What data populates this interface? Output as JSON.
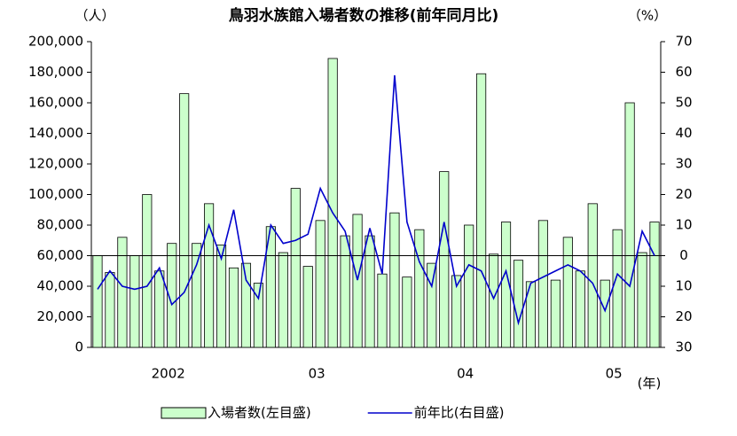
{
  "chart_data": {
    "type": "bar",
    "title": "鳥羽水族館入場者数の推移(前年同月比)",
    "y_label": "（人）",
    "y2_label": "（%）",
    "x_label": "(年)",
    "categories": [
      null,
      null,
      null,
      null,
      null,
      null,
      "2002",
      null,
      null,
      null,
      null,
      null,
      null,
      null,
      null,
      null,
      null,
      null,
      "03",
      null,
      null,
      null,
      null,
      null,
      null,
      null,
      null,
      null,
      null,
      null,
      "04",
      null,
      null,
      null,
      null,
      null,
      null,
      null,
      null,
      null,
      null,
      null,
      "05",
      null,
      null,
      null
    ],
    "series": [
      {
        "name": "入場者数(左目盛)",
        "color": "#ccffcc",
        "type": "bar",
        "values": [
          60000,
          49000,
          72000,
          60000,
          100000,
          50000,
          68000,
          166000,
          68000,
          94000,
          67000,
          52000,
          55000,
          42000,
          79000,
          62000,
          104000,
          53000,
          83000,
          189000,
          73000,
          87000,
          73000,
          48000,
          88000,
          46000,
          77000,
          55000,
          115000,
          47000,
          80000,
          179000,
          61000,
          82000,
          57000,
          43000,
          83000,
          44000,
          72000,
          50000,
          94000,
          44000,
          77000,
          160000,
          62000,
          82000
        ]
      },
      {
        "name": "前年比(右目盛)",
        "color": "#0000cc",
        "type": "line",
        "axis": "y2",
        "values": [
          -11,
          -5,
          -10,
          -11,
          -10,
          -4,
          -16,
          -12,
          -3,
          10,
          -1,
          15,
          -8,
          -14,
          10,
          4,
          5,
          7,
          22,
          14,
          8,
          -8,
          9,
          -6,
          59,
          11,
          -2,
          -10,
          11,
          -10,
          -3,
          -5,
          -14,
          -5,
          -22,
          -9,
          -7,
          -5,
          -3,
          -5,
          -9,
          -18,
          -6,
          -10,
          8,
          0
        ]
      }
    ],
    "ylim": [
      0,
      200000
    ],
    "yticks": [
      0,
      {
        "value": 20000,
        "label": "20,000"
      },
      {
        "value": 40000,
        "label": "40,000"
      },
      {
        "value": 60000,
        "label": "60,000"
      },
      {
        "value": 80000,
        "label": "80,000"
      },
      {
        "value": 100000,
        "label": "100,000"
      },
      {
        "value": 120000,
        "label": "120,000"
      },
      {
        "value": 140000,
        "label": "140,000"
      },
      {
        "value": 160000,
        "label": "160,000"
      },
      {
        "value": 180000,
        "label": "180,000"
      },
      {
        "value": 200000,
        "label": "200,000"
      }
    ],
    "y2lim": [
      -30,
      70
    ],
    "y2ticks": [
      70,
      60,
      50,
      40,
      30,
      20,
      10,
      0,
      {
        "value": -10,
        "label": "10"
      },
      {
        "value": -20,
        "label": "20"
      },
      {
        "value": -30,
        "label": "30"
      }
    ],
    "legend": "bottom"
  }
}
